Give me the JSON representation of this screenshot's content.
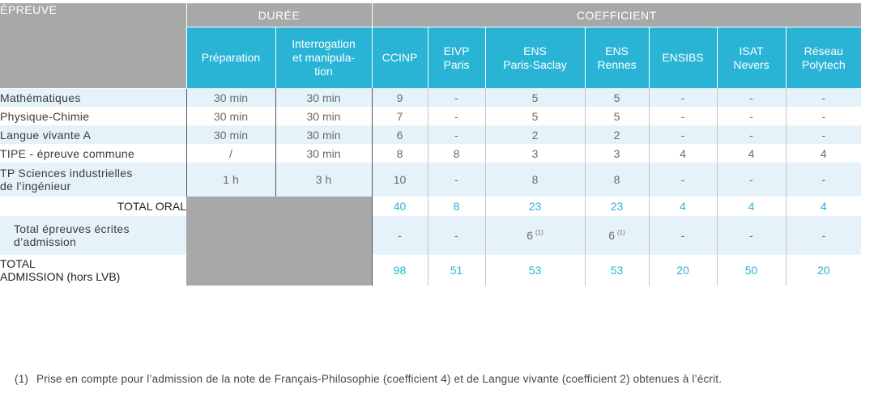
{
  "header": {
    "epreuve": "ÉPREUVE",
    "duree": "DURÉE",
    "coefficient": "COEFFICIENT",
    "preparation": "Préparation",
    "interrogation": [
      "Interrogation",
      "et manipula-",
      "tion"
    ],
    "schools": [
      [
        "CCINP"
      ],
      [
        "EIVP",
        "Paris"
      ],
      [
        "ENS",
        "Paris-Saclay"
      ],
      [
        "ENS",
        "Rennes"
      ],
      [
        "ENSIBS"
      ],
      [
        "ISAT",
        "Nevers"
      ],
      [
        "Réseau",
        "Polytech"
      ]
    ]
  },
  "rows": [
    {
      "label": [
        "Mathématiques"
      ],
      "prep": "30 min",
      "inter": "30 min",
      "coef": [
        "9",
        "-",
        "5",
        "5",
        "-",
        "-",
        "-"
      ]
    },
    {
      "label": [
        "Physique-Chimie"
      ],
      "prep": "30 min",
      "inter": "30 min",
      "coef": [
        "7",
        "-",
        "5",
        "5",
        "-",
        "-",
        "-"
      ]
    },
    {
      "label": [
        "Langue vivante A"
      ],
      "prep": "30 min",
      "inter": "30 min",
      "coef": [
        "6",
        "-",
        "2",
        "2",
        "-",
        "-",
        "-"
      ]
    },
    {
      "label": [
        "TIPE - épreuve commune"
      ],
      "prep": "/",
      "inter": "30 min",
      "coef": [
        "8",
        "8",
        "3",
        "3",
        "4",
        "4",
        "4"
      ]
    },
    {
      "label": [
        "TP Sciences industrielles",
        "de l’ingénieur"
      ],
      "prep": "1 h",
      "inter": "3 h",
      "coef": [
        "10",
        "-",
        "8",
        "8",
        "-",
        "-",
        "-"
      ]
    }
  ],
  "total_oral": {
    "label": "TOTAL ORAL",
    "values": [
      "40",
      "8",
      "23",
      "23",
      "4",
      "4",
      "4"
    ]
  },
  "ecrites": {
    "label": [
      "Total épreuves écrites",
      "d’admission"
    ],
    "values": [
      "-",
      "-",
      "6",
      "6",
      "-",
      "-",
      "-"
    ],
    "sup": [
      "",
      "",
      "(1)",
      "(1)",
      "",
      "",
      ""
    ]
  },
  "total_admission": {
    "label": [
      "TOTAL",
      "ADMISSION (hors LVB)"
    ],
    "values": [
      "98",
      "51",
      "53",
      "53",
      "20",
      "50",
      "20"
    ]
  },
  "footnote": {
    "num": "(1)",
    "text": "Prise en compte pour l’admission de la note de Français-Philosophie (coefficient 4) et de Langue vivante (coefficient 2) obtenues à l’écrit."
  },
  "colors": {
    "header_grey": "#a8a8a8",
    "header_blue": "#29b4d6",
    "row_alt": "#e6f2fa",
    "total_blue": "#29b4d6"
  }
}
